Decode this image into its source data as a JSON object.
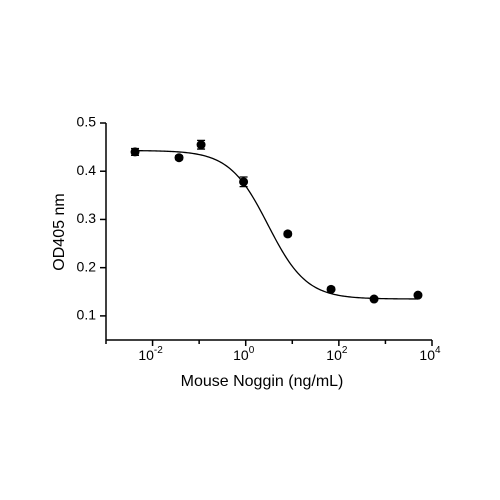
{
  "chart_data": {
    "type": "scatter",
    "x_label": "Mouse Noggin (ng/mL)",
    "y_label": "OD405 nm",
    "x": [
      0.0042,
      0.037,
      0.11,
      0.9,
      8,
      68,
      570,
      5000
    ],
    "values": [
      0.44,
      0.428,
      0.455,
      0.378,
      0.27,
      0.155,
      0.135,
      0.143
    ],
    "errors": [
      0.007,
      0.004,
      0.009,
      0.01,
      0.004,
      0.003,
      0.003,
      0.003
    ],
    "color": "#000000",
    "fit": {
      "top": 0.443,
      "bottom": 0.135,
      "ec50": 3,
      "hill": 1.05
    },
    "x_log": true,
    "xlim": [
      0.001,
      10000
    ],
    "ylim": [
      0.05,
      0.5
    ],
    "xticks": [
      {
        "value": 0.01,
        "label": "10",
        "exponent": "-2"
      },
      {
        "value": 1,
        "label": "10",
        "exponent": "0"
      },
      {
        "value": 100,
        "label": "10",
        "exponent": "2"
      },
      {
        "value": 10000,
        "label": "10",
        "exponent": "4"
      }
    ],
    "minor_xticks": [
      0.001,
      0.1,
      10,
      1000
    ],
    "yticks": [
      0.1,
      0.2,
      0.3,
      0.4,
      0.5
    ]
  }
}
